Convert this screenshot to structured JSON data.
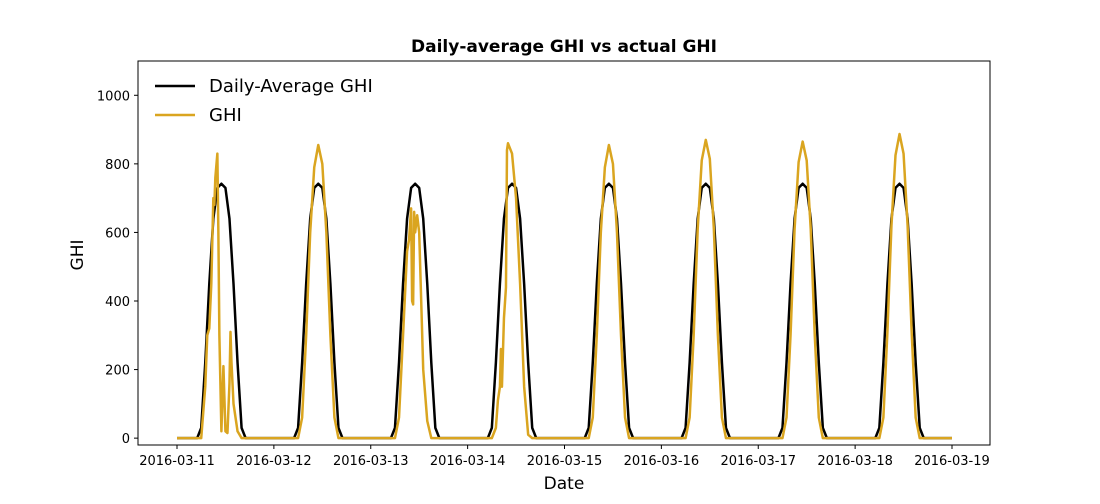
{
  "chart_data": {
    "type": "line",
    "title": "Daily-average GHI vs actual GHI",
    "xlabel": "Date",
    "ylabel": "GHI",
    "xlim": [
      "2016-03-11 00:00",
      "2016-03-19 00:00"
    ],
    "ylim": [
      -20,
      1100
    ],
    "x_ticks": [
      "2016-03-11",
      "2016-03-12",
      "2016-03-13",
      "2016-03-14",
      "2016-03-15",
      "2016-03-16",
      "2016-03-17",
      "2016-03-18",
      "2016-03-19"
    ],
    "y_ticks": [
      0,
      200,
      400,
      600,
      800,
      1000
    ],
    "grid": false,
    "legend_position": "top-left",
    "colors": {
      "Daily-Average GHI": "#000000",
      "GHI": "#DAA520"
    },
    "series": [
      {
        "name": "Daily-Average GHI",
        "points": [
          [
            "2016-03-11 00:00",
            0
          ],
          [
            "2016-03-11 05:00",
            0
          ],
          [
            "2016-03-11 06:00",
            30
          ],
          [
            "2016-03-11 07:00",
            220
          ],
          [
            "2016-03-11 08:00",
            450
          ],
          [
            "2016-03-11 09:00",
            640
          ],
          [
            "2016-03-11 10:00",
            730
          ],
          [
            "2016-03-11 11:00",
            742
          ],
          [
            "2016-03-11 12:00",
            730
          ],
          [
            "2016-03-11 13:00",
            640
          ],
          [
            "2016-03-11 14:00",
            450
          ],
          [
            "2016-03-11 15:00",
            220
          ],
          [
            "2016-03-11 16:00",
            30
          ],
          [
            "2016-03-11 17:00",
            0
          ],
          [
            "2016-03-12 05:00",
            0
          ],
          [
            "2016-03-12 06:00",
            30
          ],
          [
            "2016-03-12 07:00",
            220
          ],
          [
            "2016-03-12 08:00",
            450
          ],
          [
            "2016-03-12 09:00",
            640
          ],
          [
            "2016-03-12 10:00",
            730
          ],
          [
            "2016-03-12 11:00",
            742
          ],
          [
            "2016-03-12 12:00",
            730
          ],
          [
            "2016-03-12 13:00",
            640
          ],
          [
            "2016-03-12 14:00",
            450
          ],
          [
            "2016-03-12 15:00",
            220
          ],
          [
            "2016-03-12 16:00",
            30
          ],
          [
            "2016-03-12 17:00",
            0
          ],
          [
            "2016-03-13 05:00",
            0
          ],
          [
            "2016-03-13 06:00",
            30
          ],
          [
            "2016-03-13 07:00",
            220
          ],
          [
            "2016-03-13 08:00",
            450
          ],
          [
            "2016-03-13 09:00",
            640
          ],
          [
            "2016-03-13 10:00",
            730
          ],
          [
            "2016-03-13 11:00",
            742
          ],
          [
            "2016-03-13 12:00",
            730
          ],
          [
            "2016-03-13 13:00",
            640
          ],
          [
            "2016-03-13 14:00",
            450
          ],
          [
            "2016-03-13 15:00",
            220
          ],
          [
            "2016-03-13 16:00",
            30
          ],
          [
            "2016-03-13 17:00",
            0
          ],
          [
            "2016-03-14 05:00",
            0
          ],
          [
            "2016-03-14 06:00",
            30
          ],
          [
            "2016-03-14 07:00",
            220
          ],
          [
            "2016-03-14 08:00",
            450
          ],
          [
            "2016-03-14 09:00",
            640
          ],
          [
            "2016-03-14 10:00",
            730
          ],
          [
            "2016-03-14 11:00",
            742
          ],
          [
            "2016-03-14 12:00",
            730
          ],
          [
            "2016-03-14 13:00",
            640
          ],
          [
            "2016-03-14 14:00",
            450
          ],
          [
            "2016-03-14 15:00",
            220
          ],
          [
            "2016-03-14 16:00",
            30
          ],
          [
            "2016-03-14 17:00",
            0
          ],
          [
            "2016-03-15 05:00",
            0
          ],
          [
            "2016-03-15 06:00",
            30
          ],
          [
            "2016-03-15 07:00",
            220
          ],
          [
            "2016-03-15 08:00",
            450
          ],
          [
            "2016-03-15 09:00",
            640
          ],
          [
            "2016-03-15 10:00",
            730
          ],
          [
            "2016-03-15 11:00",
            742
          ],
          [
            "2016-03-15 12:00",
            730
          ],
          [
            "2016-03-15 13:00",
            640
          ],
          [
            "2016-03-15 14:00",
            450
          ],
          [
            "2016-03-15 15:00",
            220
          ],
          [
            "2016-03-15 16:00",
            30
          ],
          [
            "2016-03-15 17:00",
            0
          ],
          [
            "2016-03-16 05:00",
            0
          ],
          [
            "2016-03-16 06:00",
            30
          ],
          [
            "2016-03-16 07:00",
            220
          ],
          [
            "2016-03-16 08:00",
            450
          ],
          [
            "2016-03-16 09:00",
            640
          ],
          [
            "2016-03-16 10:00",
            730
          ],
          [
            "2016-03-16 11:00",
            742
          ],
          [
            "2016-03-16 12:00",
            730
          ],
          [
            "2016-03-16 13:00",
            640
          ],
          [
            "2016-03-16 14:00",
            450
          ],
          [
            "2016-03-16 15:00",
            220
          ],
          [
            "2016-03-16 16:00",
            30
          ],
          [
            "2016-03-16 17:00",
            0
          ],
          [
            "2016-03-17 05:00",
            0
          ],
          [
            "2016-03-17 06:00",
            30
          ],
          [
            "2016-03-17 07:00",
            220
          ],
          [
            "2016-03-17 08:00",
            450
          ],
          [
            "2016-03-17 09:00",
            640
          ],
          [
            "2016-03-17 10:00",
            730
          ],
          [
            "2016-03-17 11:00",
            742
          ],
          [
            "2016-03-17 12:00",
            730
          ],
          [
            "2016-03-17 13:00",
            640
          ],
          [
            "2016-03-17 14:00",
            450
          ],
          [
            "2016-03-17 15:00",
            220
          ],
          [
            "2016-03-17 16:00",
            30
          ],
          [
            "2016-03-17 17:00",
            0
          ],
          [
            "2016-03-18 05:00",
            0
          ],
          [
            "2016-03-18 06:00",
            30
          ],
          [
            "2016-03-18 07:00",
            220
          ],
          [
            "2016-03-18 08:00",
            450
          ],
          [
            "2016-03-18 09:00",
            640
          ],
          [
            "2016-03-18 10:00",
            730
          ],
          [
            "2016-03-18 11:00",
            742
          ],
          [
            "2016-03-18 12:00",
            730
          ],
          [
            "2016-03-18 13:00",
            640
          ],
          [
            "2016-03-18 14:00",
            450
          ],
          [
            "2016-03-18 15:00",
            220
          ],
          [
            "2016-03-18 16:00",
            30
          ],
          [
            "2016-03-18 17:00",
            0
          ],
          [
            "2016-03-19 00:00",
            0
          ]
        ]
      },
      {
        "name": "GHI",
        "points": [
          [
            "2016-03-11 00:00",
            0
          ],
          [
            "2016-03-11 06:00",
            0
          ],
          [
            "2016-03-11 07:00",
            150
          ],
          [
            "2016-03-11 07:30",
            300
          ],
          [
            "2016-03-11 08:00",
            320
          ],
          [
            "2016-03-11 08:30",
            450
          ],
          [
            "2016-03-11 09:00",
            700
          ],
          [
            "2016-03-11 09:15",
            680
          ],
          [
            "2016-03-11 09:30",
            760
          ],
          [
            "2016-03-11 10:00",
            830
          ],
          [
            "2016-03-11 10:15",
            600
          ],
          [
            "2016-03-11 10:30",
            300
          ],
          [
            "2016-03-11 11:00",
            20
          ],
          [
            "2016-03-11 11:30",
            210
          ],
          [
            "2016-03-11 12:00",
            20
          ],
          [
            "2016-03-11 12:30",
            15
          ],
          [
            "2016-03-11 13:00",
            160
          ],
          [
            "2016-03-11 13:15",
            310
          ],
          [
            "2016-03-11 13:30",
            220
          ],
          [
            "2016-03-11 14:00",
            100
          ],
          [
            "2016-03-11 15:00",
            20
          ],
          [
            "2016-03-11 16:00",
            0
          ],
          [
            "2016-03-12 06:00",
            0
          ],
          [
            "2016-03-12 07:00",
            60
          ],
          [
            "2016-03-12 08:00",
            300
          ],
          [
            "2016-03-12 09:00",
            600
          ],
          [
            "2016-03-12 10:00",
            790
          ],
          [
            "2016-03-12 11:00",
            855
          ],
          [
            "2016-03-12 12:00",
            800
          ],
          [
            "2016-03-12 13:00",
            600
          ],
          [
            "2016-03-12 14:00",
            300
          ],
          [
            "2016-03-12 15:00",
            60
          ],
          [
            "2016-03-12 16:00",
            0
          ],
          [
            "2016-03-13 06:00",
            0
          ],
          [
            "2016-03-13 07:00",
            60
          ],
          [
            "2016-03-13 08:00",
            300
          ],
          [
            "2016-03-13 09:00",
            545
          ],
          [
            "2016-03-13 09:30",
            580
          ],
          [
            "2016-03-13 10:00",
            670
          ],
          [
            "2016-03-13 10:15",
            400
          ],
          [
            "2016-03-13 10:30",
            390
          ],
          [
            "2016-03-13 10:45",
            660
          ],
          [
            "2016-03-13 11:00",
            600
          ],
          [
            "2016-03-13 11:30",
            650
          ],
          [
            "2016-03-13 12:00",
            600
          ],
          [
            "2016-03-13 13:00",
            200
          ],
          [
            "2016-03-13 14:00",
            50
          ],
          [
            "2016-03-13 15:00",
            0
          ],
          [
            "2016-03-14 06:00",
            0
          ],
          [
            "2016-03-14 07:00",
            30
          ],
          [
            "2016-03-14 07:30",
            110
          ],
          [
            "2016-03-14 08:00",
            150
          ],
          [
            "2016-03-14 08:15",
            260
          ],
          [
            "2016-03-14 08:30",
            150
          ],
          [
            "2016-03-14 09:00",
            350
          ],
          [
            "2016-03-14 09:30",
            440
          ],
          [
            "2016-03-14 09:45",
            840
          ],
          [
            "2016-03-14 10:00",
            860
          ],
          [
            "2016-03-14 11:00",
            830
          ],
          [
            "2016-03-14 12:00",
            700
          ],
          [
            "2016-03-14 13:00",
            450
          ],
          [
            "2016-03-14 14:00",
            150
          ],
          [
            "2016-03-14 15:00",
            10
          ],
          [
            "2016-03-14 16:00",
            0
          ],
          [
            "2016-03-15 06:00",
            0
          ],
          [
            "2016-03-15 07:00",
            60
          ],
          [
            "2016-03-15 08:00",
            300
          ],
          [
            "2016-03-15 09:00",
            600
          ],
          [
            "2016-03-15 10:00",
            790
          ],
          [
            "2016-03-15 11:00",
            855
          ],
          [
            "2016-03-15 12:00",
            800
          ],
          [
            "2016-03-15 13:00",
            600
          ],
          [
            "2016-03-15 14:00",
            300
          ],
          [
            "2016-03-15 15:00",
            60
          ],
          [
            "2016-03-15 16:00",
            0
          ],
          [
            "2016-03-16 06:00",
            0
          ],
          [
            "2016-03-16 07:00",
            60
          ],
          [
            "2016-03-16 08:00",
            300
          ],
          [
            "2016-03-16 09:00",
            610
          ],
          [
            "2016-03-16 10:00",
            810
          ],
          [
            "2016-03-16 11:00",
            870
          ],
          [
            "2016-03-16 12:00",
            815
          ],
          [
            "2016-03-16 13:00",
            610
          ],
          [
            "2016-03-16 14:00",
            300
          ],
          [
            "2016-03-16 15:00",
            60
          ],
          [
            "2016-03-16 16:00",
            0
          ],
          [
            "2016-03-17 06:00",
            0
          ],
          [
            "2016-03-17 07:00",
            60
          ],
          [
            "2016-03-17 08:00",
            300
          ],
          [
            "2016-03-17 09:00",
            610
          ],
          [
            "2016-03-17 10:00",
            805
          ],
          [
            "2016-03-17 11:00",
            865
          ],
          [
            "2016-03-17 12:00",
            810
          ],
          [
            "2016-03-17 13:00",
            610
          ],
          [
            "2016-03-17 14:00",
            300
          ],
          [
            "2016-03-17 15:00",
            60
          ],
          [
            "2016-03-17 16:00",
            0
          ],
          [
            "2016-03-18 06:00",
            0
          ],
          [
            "2016-03-18 07:00",
            60
          ],
          [
            "2016-03-18 08:00",
            310
          ],
          [
            "2016-03-18 09:00",
            620
          ],
          [
            "2016-03-18 10:00",
            825
          ],
          [
            "2016-03-18 11:00",
            887
          ],
          [
            "2016-03-18 12:00",
            830
          ],
          [
            "2016-03-18 13:00",
            620
          ],
          [
            "2016-03-18 14:00",
            310
          ],
          [
            "2016-03-18 15:00",
            60
          ],
          [
            "2016-03-18 16:00",
            0
          ],
          [
            "2016-03-19 00:00",
            0
          ]
        ]
      }
    ]
  }
}
